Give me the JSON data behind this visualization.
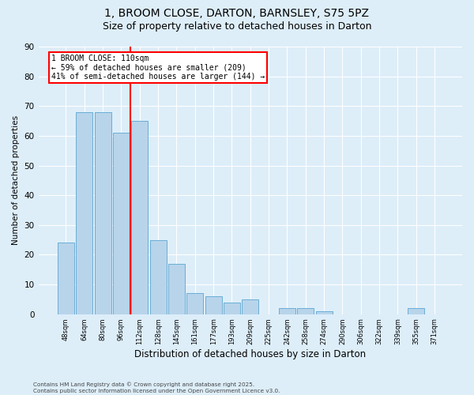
{
  "title_line1": "1, BROOM CLOSE, DARTON, BARNSLEY, S75 5PZ",
  "title_line2": "Size of property relative to detached houses in Darton",
  "xlabel": "Distribution of detached houses by size in Darton",
  "ylabel": "Number of detached properties",
  "footer": "Contains HM Land Registry data © Crown copyright and database right 2025.\nContains public sector information licensed under the Open Government Licence v3.0.",
  "bar_labels": [
    "48sqm",
    "64sqm",
    "80sqm",
    "96sqm",
    "112sqm",
    "128sqm",
    "145sqm",
    "161sqm",
    "177sqm",
    "193sqm",
    "209sqm",
    "225sqm",
    "242sqm",
    "258sqm",
    "274sqm",
    "290sqm",
    "306sqm",
    "322sqm",
    "339sqm",
    "355sqm",
    "371sqm"
  ],
  "bar_values": [
    24,
    68,
    68,
    61,
    65,
    25,
    17,
    7,
    6,
    4,
    5,
    0,
    2,
    2,
    1,
    0,
    0,
    0,
    0,
    2,
    0
  ],
  "bar_color": "#b8d4ea",
  "bar_edge_color": "#6aaed6",
  "vline_color": "red",
  "annotation_text": "1 BROOM CLOSE: 110sqm\n← 59% of detached houses are smaller (209)\n41% of semi-detached houses are larger (144) →",
  "ylim": [
    0,
    90
  ],
  "yticks": [
    0,
    10,
    20,
    30,
    40,
    50,
    60,
    70,
    80,
    90
  ],
  "bg_color": "#ddeef9",
  "plot_bg_color": "#ddeef9",
  "grid_color": "white",
  "title_fontsize": 10,
  "subtitle_fontsize": 9
}
